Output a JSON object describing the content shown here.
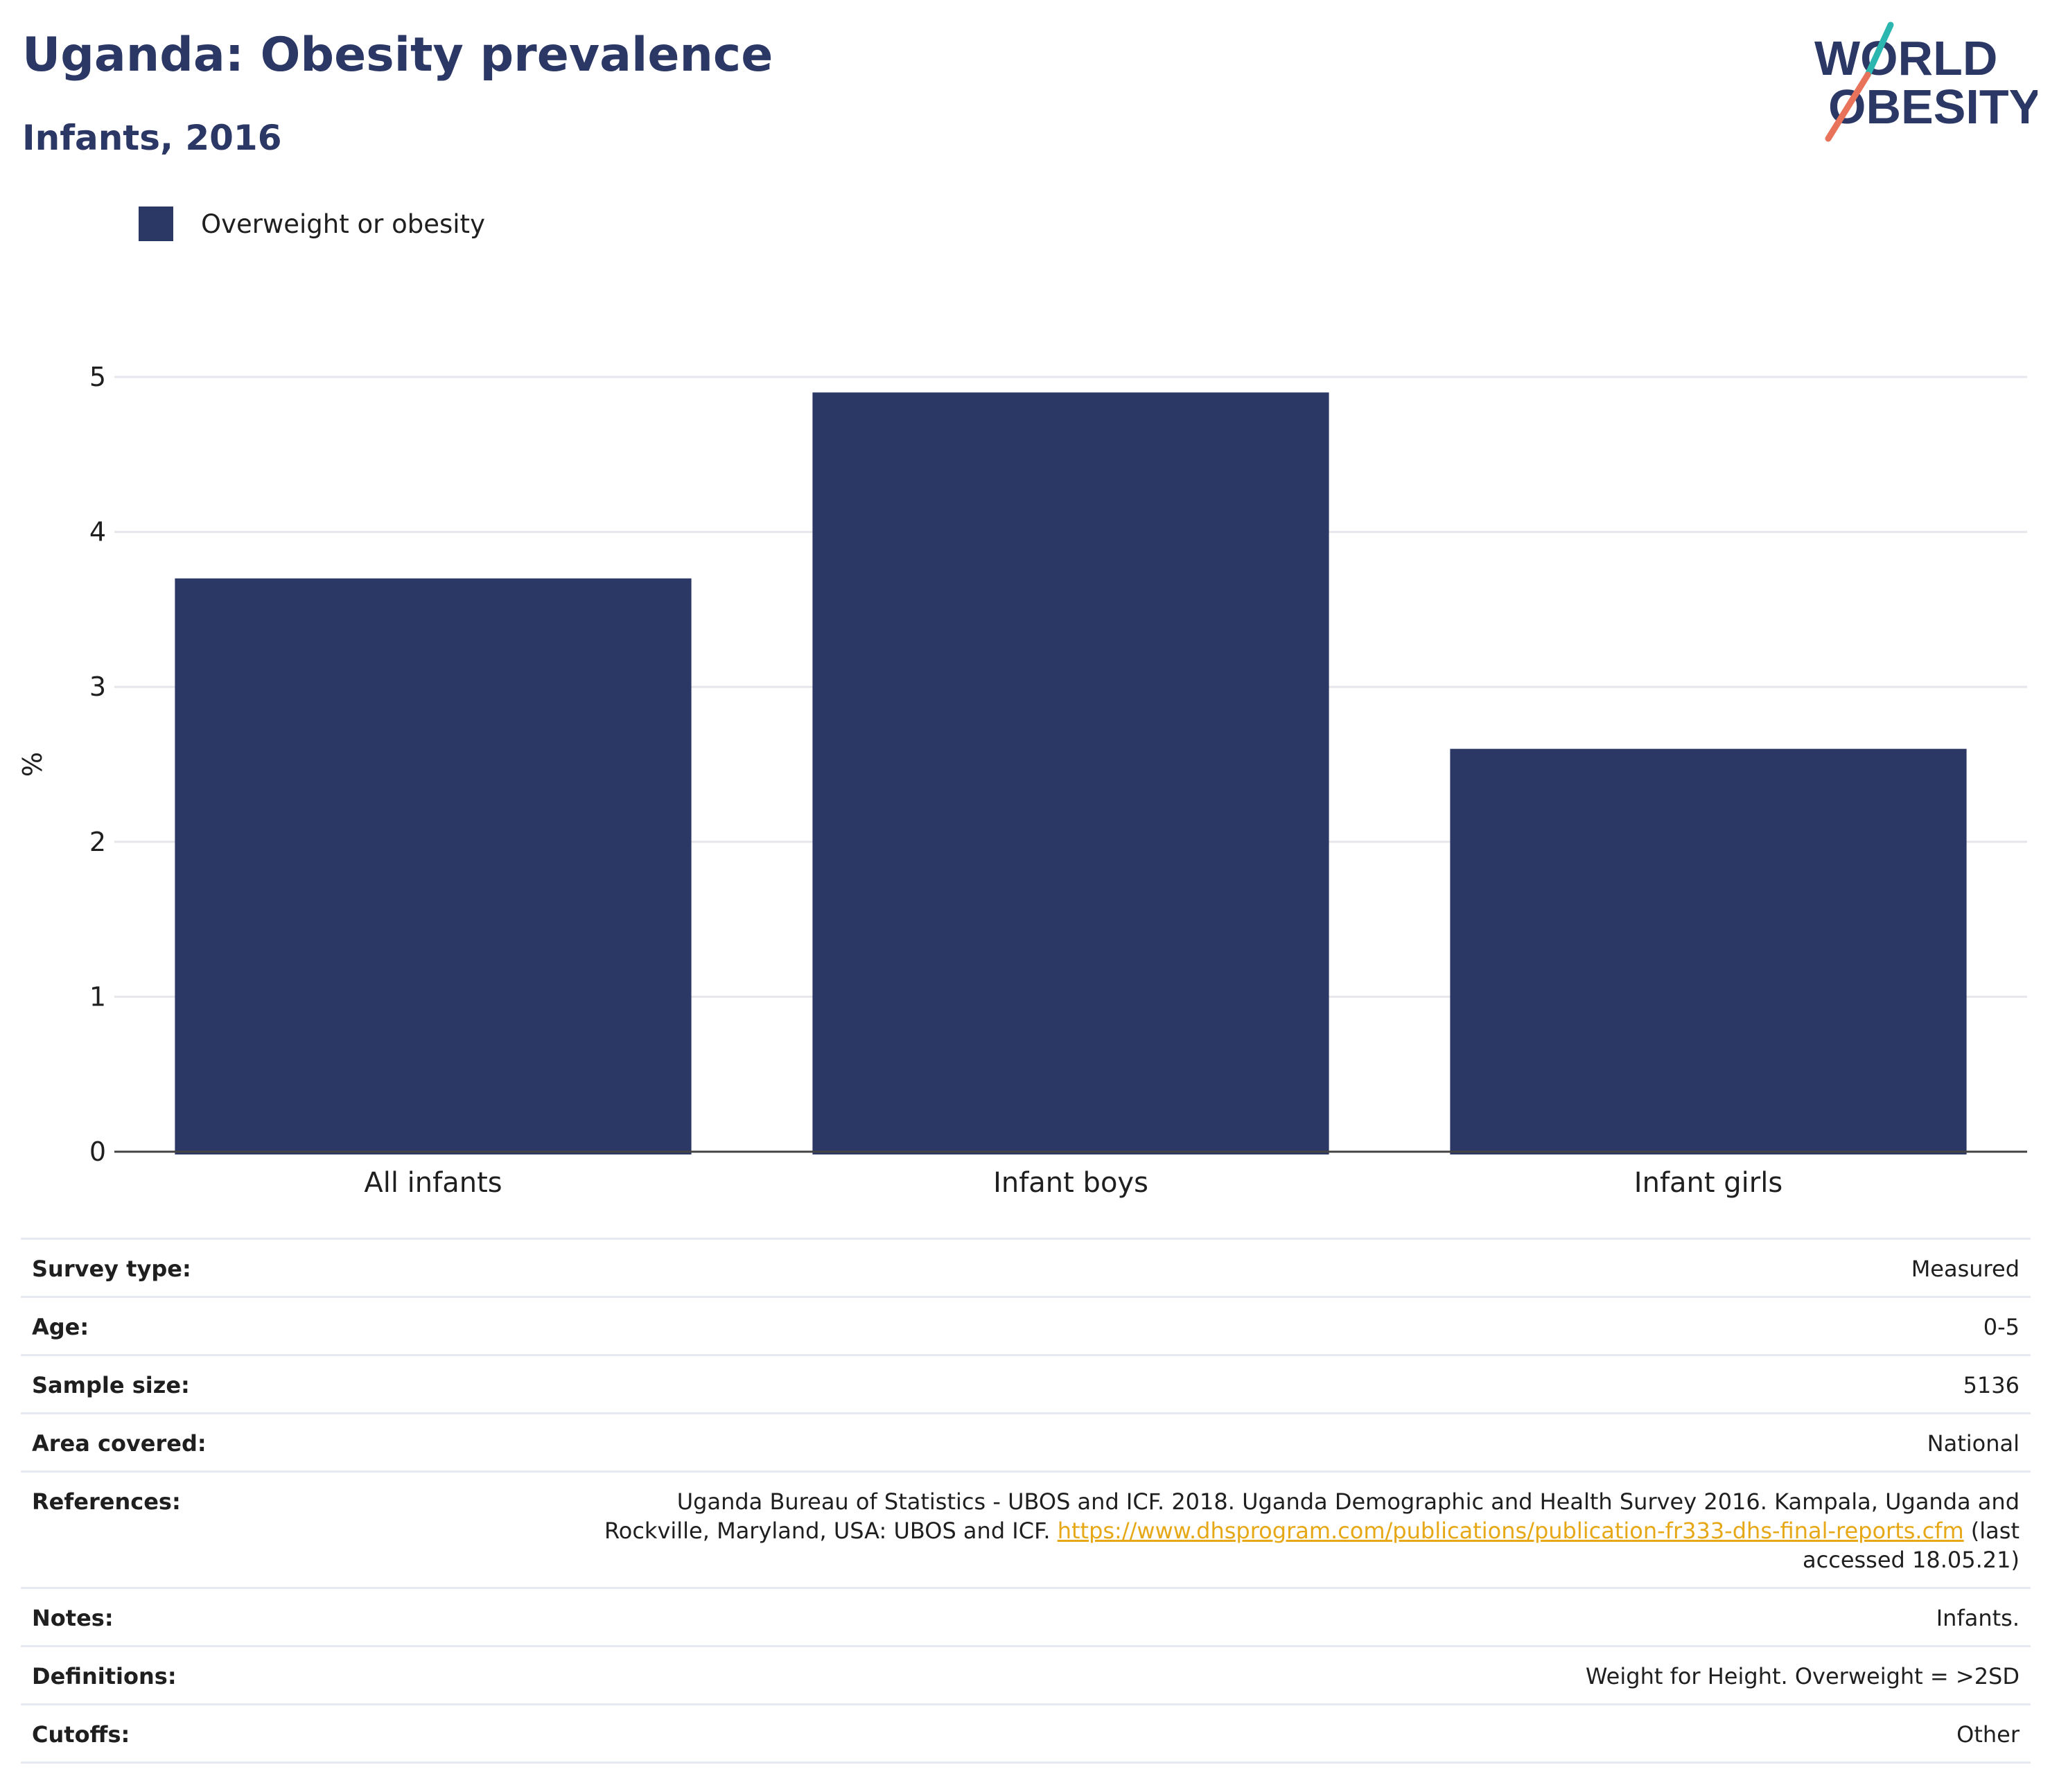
{
  "header": {
    "title": "Uganda: Obesity prevalence",
    "subtitle": "Infants, 2016"
  },
  "logo": {
    "line1": "WORLD",
    "line2": "OBESITY",
    "accent_colors": [
      "#2bb6b0",
      "#e8735a"
    ],
    "text_color": "#2b3764"
  },
  "legend": {
    "items": [
      {
        "label": "Overweight or obesity",
        "color": "#2b3764"
      }
    ],
    "position": "top-left"
  },
  "chart_data": {
    "type": "bar",
    "categories": [
      "All infants",
      "Infant boys",
      "Infant girls"
    ],
    "series": [
      {
        "name": "Overweight or obesity",
        "values": [
          3.7,
          4.9,
          2.6
        ],
        "color": "#2b3764"
      }
    ],
    "ylabel": "%",
    "xlabel": "",
    "ylim": [
      0,
      5
    ],
    "yticks": [
      0,
      1,
      2,
      3,
      4,
      5
    ],
    "grid": true
  },
  "meta": {
    "survey_type": {
      "label": "Survey type:",
      "value": "Measured"
    },
    "age": {
      "label": "Age:",
      "value": "0-5"
    },
    "sample_size": {
      "label": "Sample size:",
      "value": "5136"
    },
    "area_covered": {
      "label": "Area covered:",
      "value": "National"
    },
    "references": {
      "label": "References:",
      "text_before": "Uganda Bureau of Statistics - UBOS and ICF. 2018. Uganda Demographic and Health Survey 2016. Kampala, Uganda and Rockville, Maryland, USA: UBOS and ICF.",
      "link": "https://www.dhsprogram.com/publications/publication-fr333-dhs-final-reports.cfm",
      "text_after": "(last accessed 18.05.21)"
    },
    "notes": {
      "label": "Notes:",
      "value": "Infants."
    },
    "definitions": {
      "label": "Definitions:",
      "value": "Weight for Height. Overweight = >2SD"
    },
    "cutoffs": {
      "label": "Cutoffs:",
      "value": "Other"
    }
  }
}
